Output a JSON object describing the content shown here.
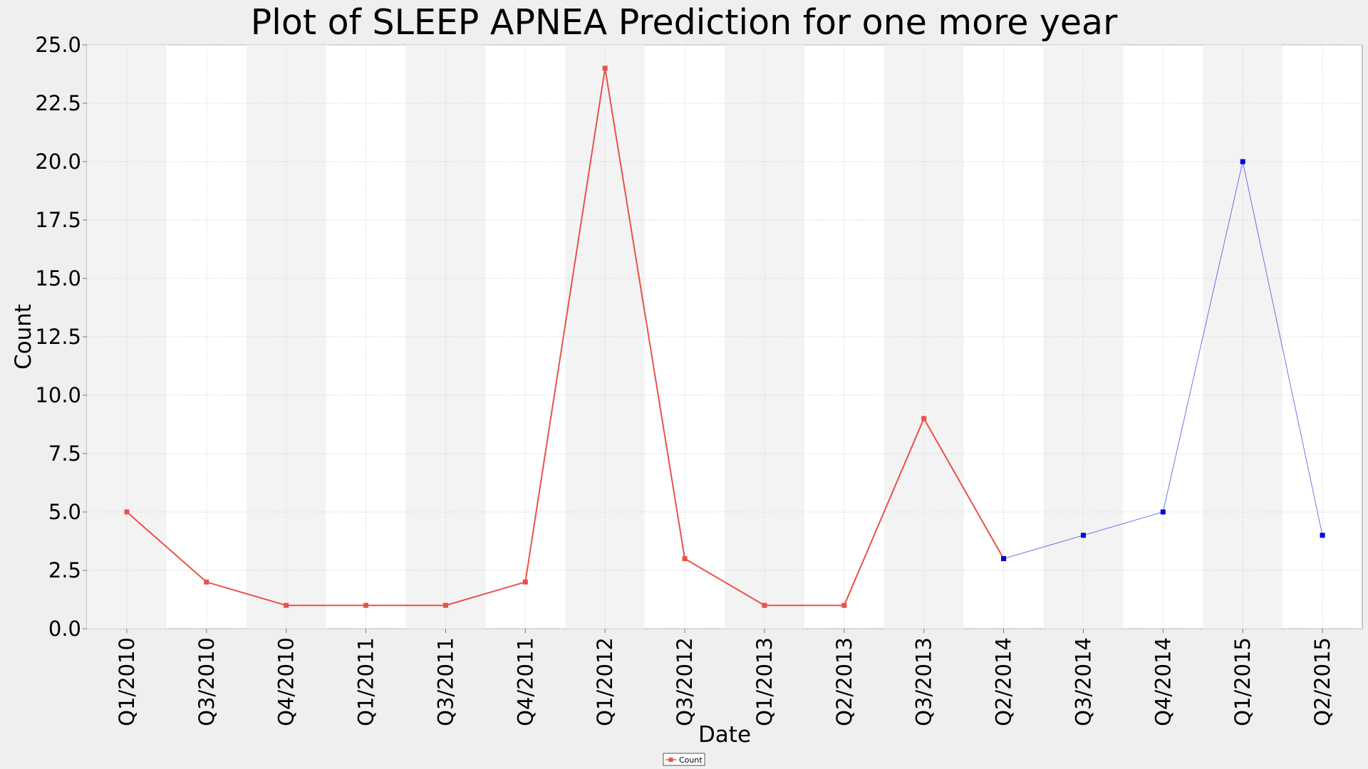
{
  "chart_data": {
    "type": "line",
    "title": "Plot of SLEEP APNEA Prediction for one more year",
    "xlabel": "Date",
    "ylabel": "Count",
    "categories": [
      "Q1/2010",
      "Q3/2010",
      "Q4/2010",
      "Q1/2011",
      "Q3/2011",
      "Q4/2011",
      "Q1/2012",
      "Q3/2012",
      "Q1/2013",
      "Q2/2013",
      "Q3/2013",
      "Q2/2014",
      "Q3/2014",
      "Q4/2014",
      "Q1/2015",
      "Q2/2015"
    ],
    "ylim": [
      0,
      25
    ],
    "yticks": [
      "0.0",
      "2.5",
      "5.0",
      "7.5",
      "10.0",
      "12.5",
      "15.0",
      "17.5",
      "20.0",
      "22.5",
      "25.0"
    ],
    "grid": true,
    "legend_position": "bottom-center",
    "series": [
      {
        "name": "Count",
        "color": "#e8524a",
        "x": [
          "Q1/2010",
          "Q3/2010",
          "Q4/2010",
          "Q1/2011",
          "Q3/2011",
          "Q4/2011",
          "Q1/2012",
          "Q3/2012",
          "Q1/2013",
          "Q2/2013",
          "Q3/2013",
          "Q2/2014"
        ],
        "values": [
          5,
          2,
          1,
          1,
          1,
          2,
          24,
          3,
          1,
          1,
          9,
          3
        ]
      },
      {
        "color": "#0000e0",
        "x": [
          "Q2/2014",
          "Q3/2014",
          "Q4/2014",
          "Q1/2015",
          "Q2/2015"
        ],
        "values": [
          3,
          4,
          5,
          20,
          4
        ]
      }
    ]
  }
}
